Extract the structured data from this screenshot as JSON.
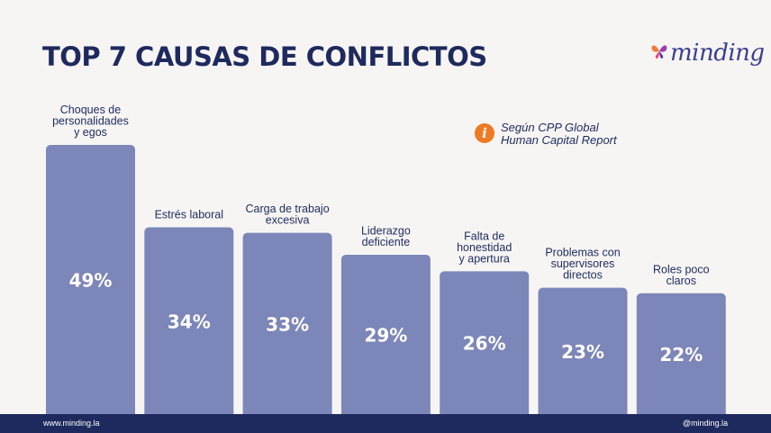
{
  "title": "TOP 7 CAUSAS DE CONFLICTOS",
  "logo": {
    "text": "minding",
    "icon": "butterfly-logo-icon"
  },
  "source": {
    "icon": "info-icon",
    "glyph": "i",
    "lines": [
      "Según CPP Global",
      "Human Capital Report"
    ]
  },
  "footer": {
    "left": "www.minding.la",
    "right": "@minding.la"
  },
  "colors": {
    "bar": "#7d86b8",
    "title": "#1e2a5e",
    "footer": "#1e2a5e",
    "accent": "#ee7a23"
  },
  "chart_data": {
    "type": "bar",
    "categories": [
      [
        "Choques de",
        "personalidades",
        "y egos"
      ],
      [
        "Estrés laboral"
      ],
      [
        "Carga de trabajo",
        "excesiva"
      ],
      [
        "Liderazgo",
        "deficiente"
      ],
      [
        "Falta de",
        "honestidad",
        "y apertura"
      ],
      [
        "Problemas con",
        "supervisores",
        "directos"
      ],
      [
        "Roles poco",
        "claros"
      ]
    ],
    "values": [
      49,
      34,
      33,
      29,
      26,
      23,
      22
    ],
    "value_labels": [
      "49%",
      "34%",
      "33%",
      "29%",
      "26%",
      "23%",
      "22%"
    ],
    "ylim": [
      0,
      49
    ],
    "grid": false,
    "legend": "none"
  }
}
